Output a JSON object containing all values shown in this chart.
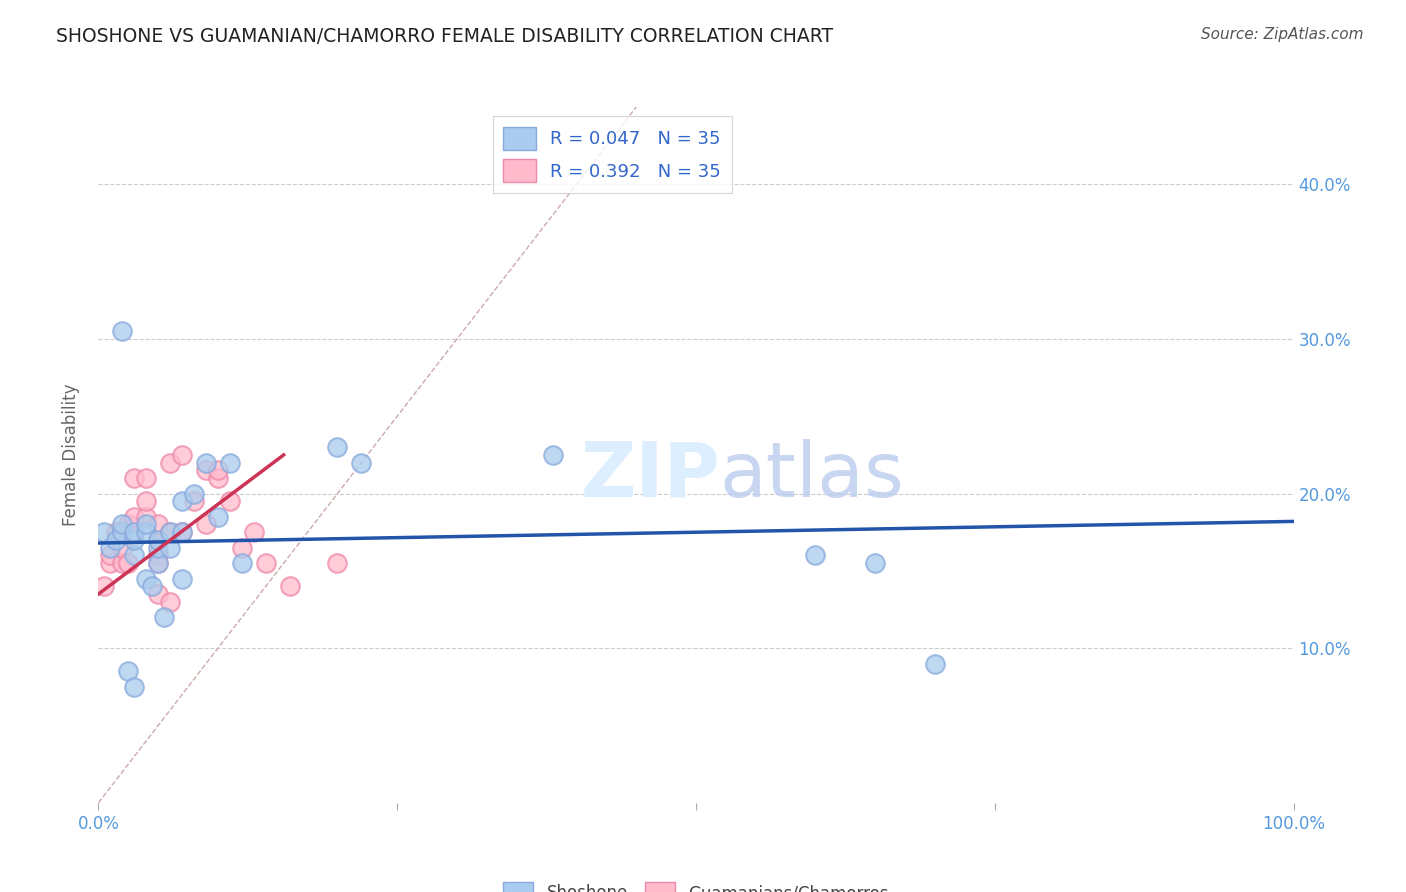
{
  "title": "SHOSHONE VS GUAMANIAN/CHAMORRO FEMALE DISABILITY CORRELATION CHART",
  "source": "Source: ZipAtlas.com",
  "ylabel": "Female Disability",
  "xlim": [
    0,
    1.0
  ],
  "ylim": [
    0,
    0.45
  ],
  "R_blue": 0.047,
  "N_blue": 35,
  "R_pink": 0.392,
  "N_pink": 35,
  "shoshone_x": [
    0.005,
    0.01,
    0.015,
    0.02,
    0.02,
    0.03,
    0.03,
    0.03,
    0.04,
    0.04,
    0.04,
    0.05,
    0.05,
    0.05,
    0.06,
    0.06,
    0.07,
    0.07,
    0.07,
    0.08,
    0.09,
    0.1,
    0.11,
    0.12,
    0.2,
    0.22,
    0.38,
    0.6,
    0.65,
    0.7,
    0.02,
    0.025,
    0.03,
    0.045,
    0.055
  ],
  "shoshone_y": [
    0.175,
    0.165,
    0.17,
    0.175,
    0.18,
    0.16,
    0.17,
    0.175,
    0.145,
    0.175,
    0.18,
    0.155,
    0.165,
    0.17,
    0.165,
    0.175,
    0.145,
    0.175,
    0.195,
    0.2,
    0.22,
    0.185,
    0.22,
    0.155,
    0.23,
    0.22,
    0.225,
    0.16,
    0.155,
    0.09,
    0.305,
    0.085,
    0.075,
    0.14,
    0.12
  ],
  "guamanian_x": [
    0.005,
    0.01,
    0.01,
    0.015,
    0.02,
    0.02,
    0.025,
    0.025,
    0.03,
    0.03,
    0.03,
    0.04,
    0.04,
    0.04,
    0.05,
    0.05,
    0.05,
    0.05,
    0.06,
    0.06,
    0.07,
    0.07,
    0.08,
    0.09,
    0.09,
    0.1,
    0.1,
    0.11,
    0.12,
    0.13,
    0.14,
    0.16,
    0.2,
    0.05,
    0.06
  ],
  "guamanian_y": [
    0.14,
    0.155,
    0.16,
    0.175,
    0.155,
    0.165,
    0.155,
    0.18,
    0.175,
    0.185,
    0.21,
    0.185,
    0.195,
    0.21,
    0.16,
    0.155,
    0.17,
    0.18,
    0.175,
    0.22,
    0.175,
    0.225,
    0.195,
    0.18,
    0.215,
    0.21,
    0.215,
    0.195,
    0.165,
    0.175,
    0.155,
    0.14,
    0.155,
    0.135,
    0.13
  ],
  "blue_line_x": [
    0.0,
    1.0
  ],
  "blue_line_y": [
    0.168,
    0.182
  ],
  "pink_line_x": [
    0.0,
    0.155
  ],
  "pink_line_y": [
    0.135,
    0.225
  ],
  "blue_line_color": "#2255AA",
  "pink_line_color": "#CC3355",
  "blue_scatter_facecolor": "#AACCEE",
  "blue_scatter_edgecolor": "#88AADD",
  "pink_scatter_facecolor": "#FFBBCC",
  "pink_scatter_edgecolor": "#EE88AA",
  "diagonal_color": "#CCAAAA",
  "grid_color": "#CCCCCC",
  "title_color": "#222222",
  "axis_tick_color": "#5599DD",
  "watermark_color": "#DDEEFF",
  "legend_text_color": "#3366CC",
  "bottom_legend_text_color": "#444444"
}
